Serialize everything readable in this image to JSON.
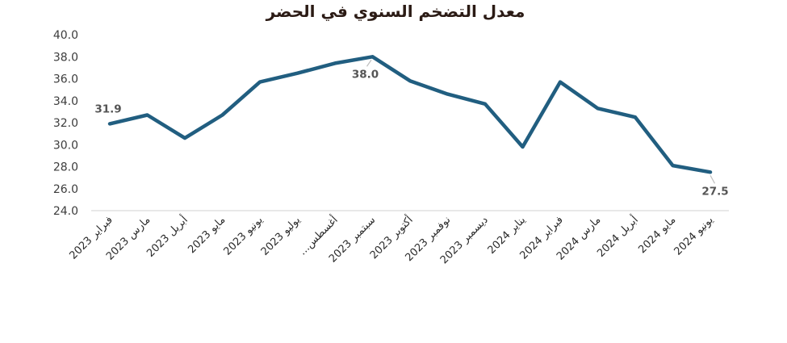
{
  "chart_data": {
    "type": "line",
    "title": "معدل التضخم السنوي في الحضر",
    "categories": [
      "فبراير 2023",
      "مارس 2023",
      "أبريل 2023",
      "مايو 2023",
      "يونيو 2023",
      "يوليو 2023",
      "أغسطس...",
      "سبتمبر 2023",
      "أكتوبر 2023",
      "نوفمبر 2023",
      "ديسمبر 2023",
      "يناير 2024",
      "فبراير 2024",
      "مارس 2024",
      "أبريل 2024",
      "مايو 2024",
      "يونيو 2024"
    ],
    "series": [
      {
        "name": "معدل التضخم السنوي في الحضر",
        "values": [
          31.9,
          32.7,
          30.6,
          32.7,
          35.7,
          36.5,
          37.4,
          38.0,
          35.8,
          34.6,
          33.7,
          29.8,
          35.7,
          33.3,
          32.5,
          28.1,
          27.5
        ]
      }
    ],
    "ylim": [
      24.0,
      40.0
    ],
    "ytick_step": 2.0,
    "ytick_labels": [
      "24.0",
      "26.0",
      "28.0",
      "30.0",
      "32.0",
      "34.0",
      "36.0",
      "38.0",
      "40.0"
    ],
    "xlabel": "",
    "ylabel": "",
    "grid": "off",
    "legend": "none",
    "x_label_rotation_deg": 45,
    "data_labels": [
      {
        "index": 0,
        "text": "31.9",
        "position": "above",
        "leader": false
      },
      {
        "index": 7,
        "text": "38.0",
        "position": "below",
        "leader": true
      },
      {
        "index": 16,
        "text": "27.5",
        "position": "below",
        "leader": true
      }
    ],
    "colors": {
      "line": "#215e80",
      "title": "#2b1b15",
      "y_axis_labels": "#3c3c3c",
      "x_axis_labels": "#2b2b2b",
      "data_labels": "#555555",
      "axis_line": "#d9d9d9",
      "leader_line": "#bfbfbf",
      "background": "#ffffff"
    }
  }
}
